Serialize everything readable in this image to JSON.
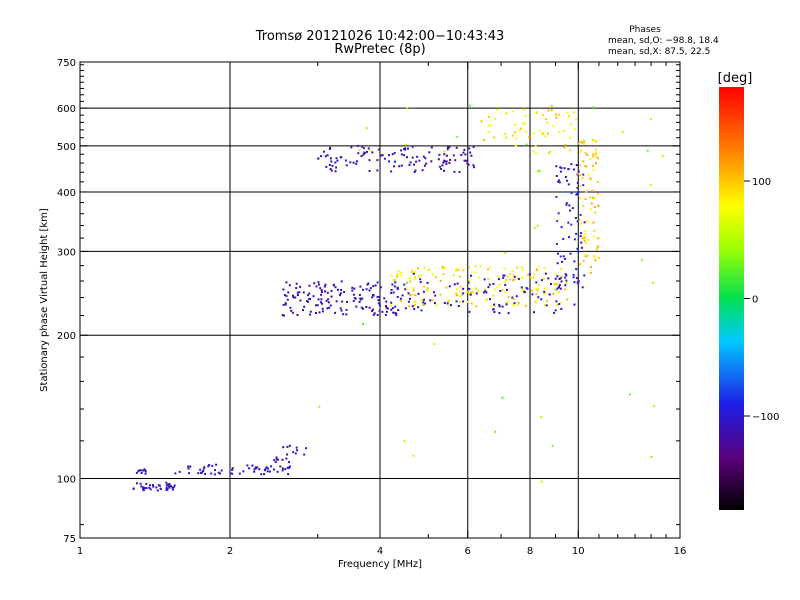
{
  "chart_data": {
    "type": "scatter",
    "title": "Tromsø 20121026 10:42:00−10:43:43",
    "subtitle": "RwPretec (8p)",
    "xlabel": "Frequency [MHz]",
    "ylabel": "Stationary phase Virtual Height [km]",
    "x_scale": "log",
    "y_scale": "log",
    "xlim": [
      1,
      16
    ],
    "ylim": [
      75,
      750
    ],
    "x_ticks": [
      1,
      2,
      4,
      6,
      8,
      10,
      16
    ],
    "y_ticks": [
      75,
      100,
      200,
      300,
      400,
      500,
      600,
      750
    ],
    "x_gridlines": [
      2,
      4,
      6,
      8,
      10
    ],
    "y_gridlines": [
      100,
      200,
      300,
      400,
      500,
      600
    ],
    "phases_box": {
      "title": "Phases",
      "line_o": "mean, sd,O: −98.8, 18.4",
      "line_x": "mean, sd,X:  87.5, 22.5"
    },
    "colorbar": {
      "label": "[deg]",
      "range": [
        -180,
        180
      ],
      "ticks": [
        100,
        0,
        -100
      ]
    },
    "series": [
      {
        "name": "",
        "value": -105,
        "x_range": [
          1.28,
          1.55
        ],
        "h_range": [
          94,
          98
        ],
        "count": 40
      },
      {
        "name": "",
        "value": -105,
        "x_range": [
          1.3,
          1.38
        ],
        "h_range": [
          102,
          105
        ],
        "count": 10
      },
      {
        "name": "",
        "value": -105,
        "x_range": [
          1.55,
          2.65
        ],
        "h_range": [
          102,
          107
        ],
        "count": 60
      },
      {
        "name": "",
        "value": -110,
        "x_range": [
          2.45,
          2.85
        ],
        "h_range": [
          108,
          118
        ],
        "count": 18
      },
      {
        "name": "",
        "value": -110,
        "x_range": [
          2.55,
          4.5
        ],
        "h_range": [
          220,
          260
        ],
        "count": 160
      },
      {
        "name": "",
        "value": -112,
        "x_range": [
          3.0,
          6.3
        ],
        "h_range": [
          440,
          500
        ],
        "count": 120
      },
      {
        "name": "",
        "value": 90,
        "x_range": [
          4.2,
          9.5
        ],
        "h_range": [
          230,
          280
        ],
        "count": 170
      },
      {
        "name": "",
        "value": -105,
        "x_range": [
          4.5,
          10.0
        ],
        "h_range": [
          222,
          270
        ],
        "count": 100
      },
      {
        "name": "",
        "value": -100,
        "x_range": [
          9.0,
          10.3
        ],
        "h_range": [
          250,
          460
        ],
        "count": 80
      },
      {
        "name": "",
        "value": 95,
        "x_range": [
          10.0,
          11.0
        ],
        "h_range": [
          270,
          520
        ],
        "count": 80
      },
      {
        "name": "",
        "value": 90,
        "x_range": [
          6.3,
          10.0
        ],
        "h_range": [
          480,
          600
        ],
        "count": 60
      },
      {
        "name": "",
        "value": 40,
        "x_range": [
          3.0,
          15.0
        ],
        "h_range": [
          90,
          640
        ],
        "count": 40
      }
    ]
  }
}
